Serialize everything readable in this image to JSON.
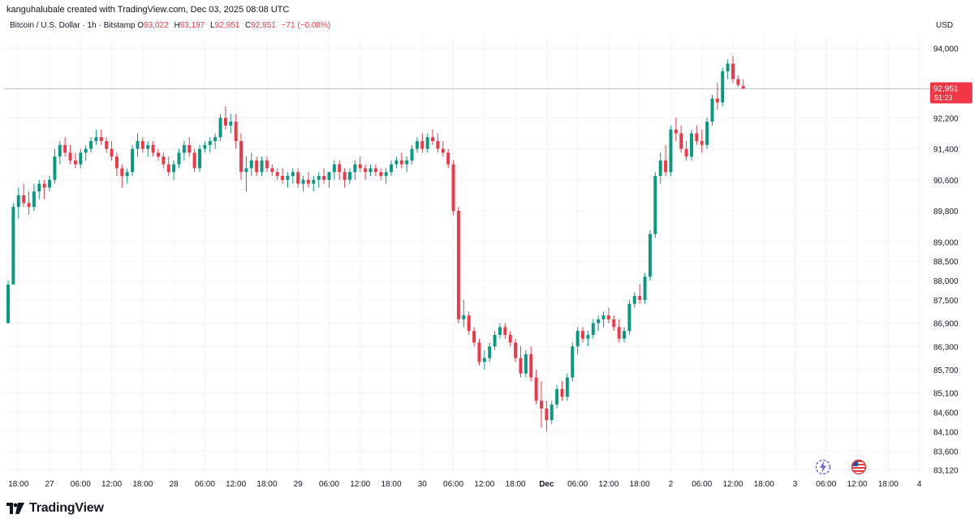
{
  "header": {
    "credit": "kanguhalubale created with TradingView.com, Dec 03, 2025 08:08 UTC",
    "symbol": "Bitcoin / U.S. Dollar · 1h · Bitstamp",
    "open_label": "O",
    "open": "93,022",
    "high_label": "H",
    "high": "93,197",
    "low_label": "L",
    "low": "92,951",
    "close_label": "C",
    "close": "92,951",
    "change": "−71 (−0.08%)",
    "currency": "USD"
  },
  "brand": {
    "name": "TradingView"
  },
  "colors": {
    "up": "#089981",
    "down": "#f23645",
    "text": "#131722",
    "grid": "#f0f3fa"
  },
  "icons": [
    "lightning-replay-icon",
    "us-flag-icon"
  ],
  "chart_data": {
    "type": "candlestick",
    "title": "Bitcoin / U.S. Dollar · 1h · Bitstamp",
    "ylabel": "USD",
    "ylim": [
      83000,
      94300
    ],
    "yticks_labels": [
      "94,000",
      "92,200",
      "91,400",
      "90,600",
      "89,800",
      "89,000",
      "88,500",
      "88,000",
      "87,500",
      "86,900",
      "86,300",
      "85,700",
      "85,100",
      "84,600",
      "84,100",
      "83,600",
      "83,120"
    ],
    "yticks": [
      94000,
      92200,
      91400,
      90600,
      89800,
      89000,
      88500,
      88000,
      87500,
      86900,
      86300,
      85700,
      85100,
      84600,
      84100,
      83600,
      83120
    ],
    "xticks": [
      {
        "label": "18:00",
        "i": 2
      },
      {
        "label": "27",
        "i": 8
      },
      {
        "label": "06:00",
        "i": 14
      },
      {
        "label": "12:00",
        "i": 20
      },
      {
        "label": "18:00",
        "i": 26
      },
      {
        "label": "28",
        "i": 32
      },
      {
        "label": "06:00",
        "i": 38
      },
      {
        "label": "12:00",
        "i": 44
      },
      {
        "label": "18:00",
        "i": 50
      },
      {
        "label": "29",
        "i": 56
      },
      {
        "label": "06:00",
        "i": 62
      },
      {
        "label": "12:00",
        "i": 68
      },
      {
        "label": "18:00",
        "i": 74
      },
      {
        "label": "30",
        "i": 80
      },
      {
        "label": "06:00",
        "i": 86
      },
      {
        "label": "12:00",
        "i": 92
      },
      {
        "label": "18:00",
        "i": 98
      },
      {
        "label": "Dec",
        "i": 104
      },
      {
        "label": "06:00",
        "i": 110
      },
      {
        "label": "12:00",
        "i": 116
      },
      {
        "label": "18:00",
        "i": 122
      },
      {
        "label": "2",
        "i": 128
      },
      {
        "label": "06:00",
        "i": 134
      },
      {
        "label": "12:00",
        "i": 140
      },
      {
        "label": "18:00",
        "i": 146
      },
      {
        "label": "3",
        "i": 152
      },
      {
        "label": "06:00",
        "i": 158
      },
      {
        "label": "12:00",
        "i": 164
      },
      {
        "label": "18:00",
        "i": 170
      },
      {
        "label": "4",
        "i": 176
      }
    ],
    "last_price": {
      "label": "92,951",
      "countdown": "51:23",
      "value": 92951
    },
    "ohlc": [
      [
        86900,
        88000,
        86900,
        87900
      ],
      [
        87900,
        90000,
        87900,
        89900
      ],
      [
        89900,
        90400,
        89600,
        90200
      ],
      [
        90200,
        90500,
        89900,
        90000
      ],
      [
        90000,
        90300,
        89700,
        89900
      ],
      [
        89900,
        90500,
        89800,
        90300
      ],
      [
        90300,
        90600,
        90100,
        90500
      ],
      [
        90500,
        90600,
        90100,
        90400
      ],
      [
        90400,
        90700,
        90300,
        90600
      ],
      [
        90600,
        91400,
        90500,
        91200
      ],
      [
        91200,
        91600,
        91000,
        91500
      ],
      [
        91500,
        91700,
        91200,
        91300
      ],
      [
        91300,
        91500,
        91000,
        91100
      ],
      [
        91100,
        91300,
        90900,
        91000
      ],
      [
        91000,
        91400,
        90900,
        91300
      ],
      [
        91300,
        91500,
        91100,
        91400
      ],
      [
        91400,
        91700,
        91300,
        91600
      ],
      [
        91600,
        91900,
        91500,
        91700
      ],
      [
        91700,
        91900,
        91500,
        91600
      ],
      [
        91600,
        91700,
        91300,
        91400
      ],
      [
        91400,
        91600,
        91100,
        91200
      ],
      [
        91200,
        91300,
        90700,
        90900
      ],
      [
        90900,
        91000,
        90400,
        90700
      ],
      [
        90700,
        90900,
        90500,
        90800
      ],
      [
        90800,
        91500,
        90700,
        91400
      ],
      [
        91400,
        91800,
        91200,
        91600
      ],
      [
        91600,
        91700,
        91300,
        91400
      ],
      [
        91400,
        91600,
        91200,
        91500
      ],
      [
        91500,
        91600,
        91200,
        91300
      ],
      [
        91300,
        91400,
        91100,
        91200
      ],
      [
        91200,
        91300,
        90900,
        91000
      ],
      [
        91000,
        91200,
        90700,
        90800
      ],
      [
        90800,
        91100,
        90600,
        91000
      ],
      [
        91000,
        91400,
        90900,
        91300
      ],
      [
        91300,
        91600,
        91100,
        91500
      ],
      [
        91500,
        91700,
        91200,
        91300
      ],
      [
        91300,
        91400,
        90800,
        90900
      ],
      [
        90900,
        91500,
        90800,
        91400
      ],
      [
        91400,
        91600,
        91300,
        91500
      ],
      [
        91500,
        91700,
        91300,
        91600
      ],
      [
        91600,
        91800,
        91400,
        91700
      ],
      [
        91700,
        92300,
        91600,
        92200
      ],
      [
        92200,
        92500,
        91900,
        92000
      ],
      [
        92000,
        92300,
        91800,
        92100
      ],
      [
        92100,
        92300,
        91400,
        91600
      ],
      [
        91600,
        91800,
        90600,
        90800
      ],
      [
        90800,
        91200,
        90300,
        90900
      ],
      [
        90900,
        91300,
        90700,
        91100
      ],
      [
        91100,
        91200,
        90700,
        90800
      ],
      [
        90800,
        91200,
        90700,
        91100
      ],
      [
        91100,
        91200,
        90800,
        90900
      ],
      [
        90900,
        91000,
        90700,
        90800
      ],
      [
        90800,
        90900,
        90600,
        90700
      ],
      [
        90700,
        90900,
        90500,
        90600
      ],
      [
        90600,
        90800,
        90400,
        90700
      ],
      [
        90700,
        90900,
        90500,
        90800
      ],
      [
        90800,
        90900,
        90400,
        90500
      ],
      [
        90500,
        90700,
        90300,
        90600
      ],
      [
        90600,
        90800,
        90400,
        90500
      ],
      [
        90500,
        90700,
        90300,
        90600
      ],
      [
        90600,
        90800,
        90400,
        90700
      ],
      [
        90700,
        90900,
        90500,
        90600
      ],
      [
        90600,
        90800,
        90400,
        90800
      ],
      [
        90800,
        91100,
        90600,
        91000
      ],
      [
        91000,
        91100,
        90600,
        90800
      ],
      [
        90800,
        90900,
        90400,
        90600
      ],
      [
        90600,
        90900,
        90500,
        90800
      ],
      [
        90800,
        91100,
        90600,
        91000
      ],
      [
        91000,
        91200,
        90800,
        90900
      ],
      [
        90900,
        91000,
        90600,
        90800
      ],
      [
        90800,
        91000,
        90700,
        90900
      ],
      [
        90900,
        91000,
        90700,
        90800
      ],
      [
        90800,
        90900,
        90600,
        90700
      ],
      [
        90700,
        90900,
        90500,
        90800
      ],
      [
        90800,
        91100,
        90700,
        91000
      ],
      [
        91000,
        91200,
        90900,
        91100
      ],
      [
        91100,
        91300,
        90900,
        91000
      ],
      [
        91000,
        91200,
        90800,
        91100
      ],
      [
        91100,
        91500,
        91000,
        91400
      ],
      [
        91400,
        91700,
        91300,
        91600
      ],
      [
        91600,
        91800,
        91300,
        91400
      ],
      [
        91400,
        91800,
        91300,
        91700
      ],
      [
        91700,
        91900,
        91500,
        91600
      ],
      [
        91600,
        91800,
        91300,
        91400
      ],
      [
        91400,
        91600,
        91200,
        91300
      ],
      [
        91300,
        91400,
        90900,
        91000
      ],
      [
        91000,
        91100,
        89700,
        89800
      ],
      [
        89800,
        89900,
        86900,
        87000
      ],
      [
        87000,
        87500,
        86800,
        87100
      ],
      [
        87100,
        87200,
        86600,
        86700
      ],
      [
        86700,
        86800,
        86300,
        86400
      ],
      [
        86400,
        86500,
        85800,
        85900
      ],
      [
        85900,
        86200,
        85700,
        86000
      ],
      [
        86000,
        86400,
        85900,
        86300
      ],
      [
        86300,
        86700,
        86200,
        86600
      ],
      [
        86600,
        86900,
        86500,
        86800
      ],
      [
        86800,
        86900,
        86500,
        86600
      ],
      [
        86600,
        86700,
        86300,
        86400
      ],
      [
        86400,
        86500,
        85900,
        86000
      ],
      [
        86000,
        86300,
        85500,
        85600
      ],
      [
        85600,
        86200,
        85500,
        86100
      ],
      [
        86100,
        86300,
        85400,
        85500
      ],
      [
        85500,
        85700,
        84800,
        84900
      ],
      [
        84900,
        85400,
        84200,
        84700
      ],
      [
        84700,
        84900,
        84100,
        84400
      ],
      [
        84400,
        84900,
        84300,
        84800
      ],
      [
        84800,
        85300,
        84700,
        85200
      ],
      [
        85200,
        85400,
        84900,
        85000
      ],
      [
        85000,
        85600,
        84900,
        85500
      ],
      [
        85500,
        86400,
        85400,
        86300
      ],
      [
        86300,
        86800,
        86100,
        86700
      ],
      [
        86700,
        86800,
        86400,
        86500
      ],
      [
        86500,
        86700,
        86300,
        86600
      ],
      [
        86600,
        87000,
        86500,
        86900
      ],
      [
        86900,
        87100,
        86700,
        87000
      ],
      [
        87000,
        87200,
        86800,
        87100
      ],
      [
        87100,
        87300,
        86900,
        87000
      ],
      [
        87000,
        87100,
        86700,
        86800
      ],
      [
        86800,
        87000,
        86400,
        86500
      ],
      [
        86500,
        86800,
        86400,
        86700
      ],
      [
        86700,
        87500,
        86600,
        87400
      ],
      [
        87400,
        87700,
        87300,
        87600
      ],
      [
        87600,
        87900,
        87400,
        87500
      ],
      [
        87500,
        88200,
        87400,
        88100
      ],
      [
        88100,
        89300,
        88000,
        89200
      ],
      [
        89200,
        90800,
        89100,
        90700
      ],
      [
        90700,
        91300,
        90500,
        91100
      ],
      [
        91100,
        91500,
        90700,
        90800
      ],
      [
        90800,
        92000,
        90700,
        91900
      ],
      [
        91900,
        92200,
        91600,
        91800
      ],
      [
        91800,
        92000,
        91300,
        91400
      ],
      [
        91400,
        91600,
        91100,
        91200
      ],
      [
        91200,
        91900,
        91100,
        91800
      ],
      [
        91800,
        92000,
        91500,
        91600
      ],
      [
        91600,
        91900,
        91300,
        91500
      ],
      [
        91500,
        92200,
        91400,
        92100
      ],
      [
        92100,
        92800,
        92000,
        92700
      ],
      [
        92700,
        93100,
        92400,
        92600
      ],
      [
        92600,
        93500,
        92500,
        93400
      ],
      [
        93400,
        93700,
        93200,
        93600
      ],
      [
        93600,
        93800,
        93100,
        93200
      ],
      [
        93200,
        93300,
        93000,
        93050
      ],
      [
        93022,
        93197,
        92951,
        92951
      ]
    ]
  }
}
